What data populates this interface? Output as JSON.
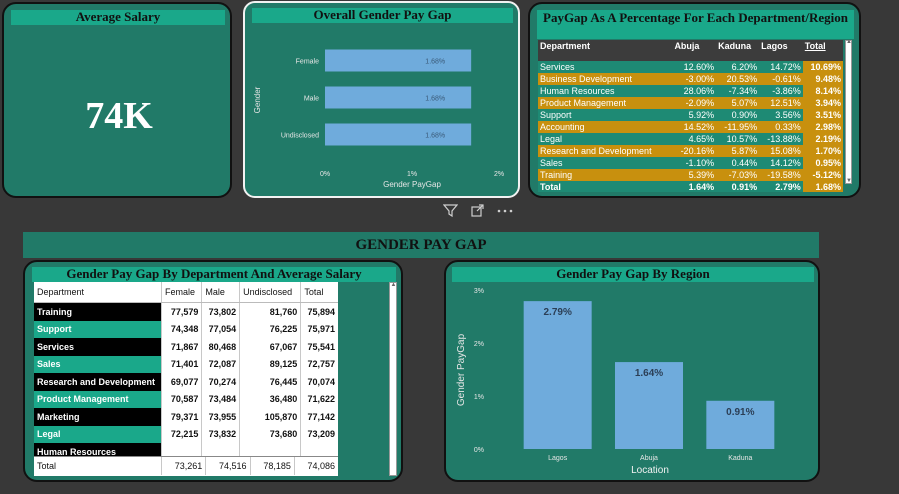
{
  "colors": {
    "background": "#383838",
    "card": "#217a68",
    "title_bar": "#1aa88a",
    "bar": "#6fabdc",
    "row_gold": "#c8900e",
    "row_teal": "#1e8a74"
  },
  "avg_salary": {
    "title": "Average Salary",
    "value": "74K"
  },
  "overall_gap": {
    "title": "Overall Gender Pay Gap",
    "chart_data": {
      "type": "bar",
      "orientation": "horizontal",
      "categories": [
        "Female",
        "Male",
        "Undisclosed"
      ],
      "values": [
        1.68,
        1.68,
        1.68
      ],
      "labels": [
        "1.68%",
        "1.68%",
        "1.68%"
      ],
      "xlabel": "Gender PayGap",
      "ylabel": "Gender",
      "xticks": [
        "0%",
        "1%",
        "2%"
      ],
      "xlim": [
        0,
        2
      ]
    }
  },
  "visual_icons": {
    "filter": "filter-icon",
    "focus": "focus-mode-icon",
    "more": "more-options-icon"
  },
  "dept_region": {
    "title": "PayGap As A Percentage For Each Department/Region",
    "columns": [
      "Department",
      "Abuja",
      "Kaduna",
      "Lagos",
      "Total"
    ],
    "rows": [
      {
        "dept": "Services",
        "abuja": "12.60%",
        "kaduna": "6.20%",
        "lagos": "14.72%",
        "total": "10.69%",
        "style": "teal"
      },
      {
        "dept": "Business Development",
        "abuja": "-3.00%",
        "kaduna": "20.53%",
        "lagos": "-0.61%",
        "total": "9.48%",
        "style": "gold"
      },
      {
        "dept": "Human Resources",
        "abuja": "28.06%",
        "kaduna": "-7.34%",
        "lagos": "-3.86%",
        "total": "8.14%",
        "style": "teal"
      },
      {
        "dept": "Product Management",
        "abuja": "-2.09%",
        "kaduna": "5.07%",
        "lagos": "12.51%",
        "total": "3.94%",
        "style": "gold"
      },
      {
        "dept": "Support",
        "abuja": "5.92%",
        "kaduna": "0.90%",
        "lagos": "3.56%",
        "total": "3.51%",
        "style": "teal"
      },
      {
        "dept": "Accounting",
        "abuja": "14.52%",
        "kaduna": "-11.95%",
        "lagos": "0.33%",
        "total": "2.98%",
        "style": "gold"
      },
      {
        "dept": "Legal",
        "abuja": "4.65%",
        "kaduna": "10.57%",
        "lagos": "-13.88%",
        "total": "2.19%",
        "style": "teal"
      },
      {
        "dept": "Research and Development",
        "abuja": "-20.16%",
        "kaduna": "5.87%",
        "lagos": "15.08%",
        "total": "1.70%",
        "style": "gold"
      },
      {
        "dept": "Sales",
        "abuja": "-1.10%",
        "kaduna": "0.44%",
        "lagos": "14.12%",
        "total": "0.95%",
        "style": "teal"
      },
      {
        "dept": "Training",
        "abuja": "5.39%",
        "kaduna": "-7.03%",
        "lagos": "-19.58%",
        "total": "-5.12%",
        "style": "gold"
      }
    ],
    "total_row": {
      "dept": "Total",
      "abuja": "1.64%",
      "kaduna": "0.91%",
      "lagos": "2.79%",
      "total": "1.68%"
    }
  },
  "section_title": "GENDER PAY GAP",
  "dept_salary": {
    "title": "Gender Pay Gap By Department And Average Salary",
    "columns": [
      "Department",
      "Female",
      "Male",
      "Undisclosed",
      "Total"
    ],
    "rows": [
      {
        "dept": "Training",
        "female": "77,579",
        "male": "73,802",
        "undisclosed": "81,760",
        "total": "75,894",
        "style": "dark"
      },
      {
        "dept": "Support",
        "female": "74,348",
        "male": "77,054",
        "undisclosed": "76,225",
        "total": "75,971",
        "style": "teal"
      },
      {
        "dept": "Services",
        "female": "71,867",
        "male": "80,468",
        "undisclosed": "67,067",
        "total": "75,541",
        "style": "dark"
      },
      {
        "dept": "Sales",
        "female": "71,401",
        "male": "72,087",
        "undisclosed": "89,125",
        "total": "72,757",
        "style": "teal"
      },
      {
        "dept": "Research and Development",
        "female": "69,077",
        "male": "70,274",
        "undisclosed": "76,445",
        "total": "70,074",
        "style": "dark"
      },
      {
        "dept": "Product Management",
        "female": "70,587",
        "male": "73,484",
        "undisclosed": "36,480",
        "total": "71,622",
        "style": "teal"
      },
      {
        "dept": "Marketing",
        "female": "79,371",
        "male": "73,955",
        "undisclosed": "105,870",
        "total": "77,142",
        "style": "dark"
      },
      {
        "dept": "Legal",
        "female": "72,215",
        "male": "73,832",
        "undisclosed": "73,680",
        "total": "73,209",
        "style": "teal"
      },
      {
        "dept": "Human Resources",
        "female": "",
        "male": "",
        "undisclosed": "",
        "total": "",
        "style": "dark"
      }
    ],
    "total_row": {
      "dept": "Total",
      "female": "73,261",
      "male": "74,516",
      "undisclosed": "78,185",
      "total": "74,086"
    }
  },
  "region_gap": {
    "title": "Gender Pay Gap By Region",
    "chart_data": {
      "type": "bar",
      "categories": [
        "Lagos",
        "Abuja",
        "Kaduna"
      ],
      "values": [
        2.79,
        1.64,
        0.91
      ],
      "labels": [
        "2.79%",
        "1.64%",
        "0.91%"
      ],
      "xlabel": "Location",
      "ylabel": "Gender PayGap",
      "yticks": [
        "0%",
        "1%",
        "2%",
        "3%"
      ],
      "ylim": [
        0,
        3
      ]
    }
  }
}
